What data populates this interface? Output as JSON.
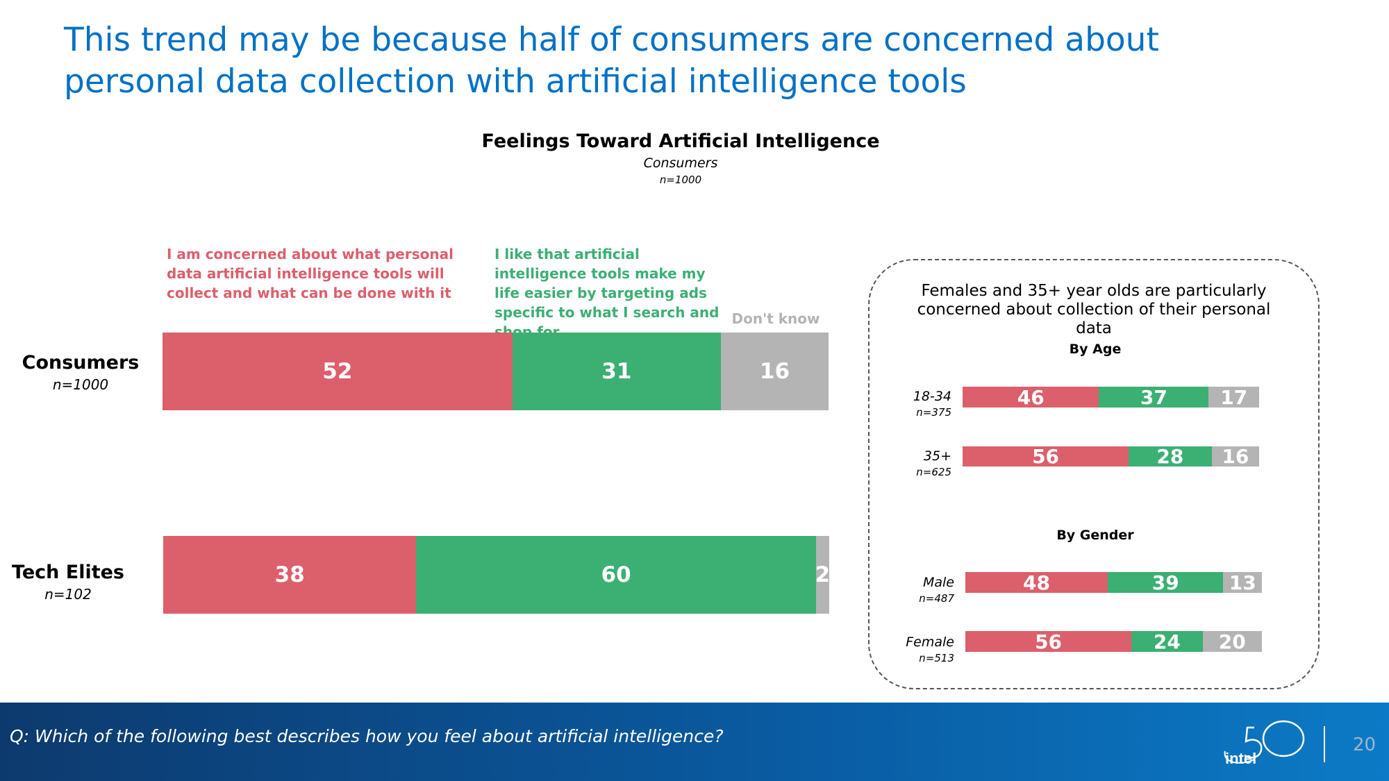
{
  "slide": {
    "title": "This trend may be because half of consumers are concerned about personal data collection with artificial intelligence tools",
    "question": "Q: Which of the following best describes how you feel about artificial intelligence?",
    "page_number": "20",
    "logo_text": "intel",
    "logo_number": "50"
  },
  "colors": {
    "title_blue": "#0071c5",
    "concerned": "#dc5f6c",
    "like": "#3caf73",
    "dont_know": "#b4b4b4"
  },
  "chart_data": [
    {
      "type": "bar",
      "orientation": "horizontal",
      "stacked": true,
      "title": "Feelings Toward Artificial Intelligence",
      "subtitle": "Consumers",
      "n_label": "n=1000",
      "legend": {
        "concerned": "I am concerned about what personal data artificial intelligence tools will collect and what can be done with it",
        "like": "I like that artificial intelligence tools make my life easier by targeting ads specific to what I search and shop for",
        "dont_know": "Don't know"
      },
      "categories": [
        {
          "name": "Consumers",
          "n": "n=1000"
        },
        {
          "name": "Tech Elites",
          "n": "n=102"
        }
      ],
      "series": [
        {
          "name": "I am concerned about what personal data artificial intelligence tools will collect and what can be done with it",
          "values": [
            52,
            38
          ]
        },
        {
          "name": "I like that artificial intelligence tools make my life easier by targeting ads specific to what I search and shop for",
          "values": [
            31,
            60
          ]
        },
        {
          "name": "Don't know",
          "values": [
            16,
            2
          ]
        }
      ],
      "xlim": [
        0,
        100
      ]
    },
    {
      "type": "bar",
      "orientation": "horizontal",
      "stacked": true,
      "heading": "Females and 35+ year olds are particularly concerned about collection of their personal data",
      "groups": [
        {
          "title": "By Age",
          "rows": [
            {
              "label": "18-34",
              "n": "n=375",
              "values": [
                46,
                37,
                17
              ]
            },
            {
              "label": "35+",
              "n": "n=625",
              "values": [
                56,
                28,
                16
              ]
            }
          ]
        },
        {
          "title": "By Gender",
          "rows": [
            {
              "label": "Male",
              "n": "n=487",
              "values": [
                48,
                39,
                13
              ]
            },
            {
              "label": "Female",
              "n": "n=513",
              "values": [
                56,
                24,
                20
              ]
            }
          ]
        }
      ],
      "series_names": [
        "I am concerned about what personal data artificial intelligence tools will collect and what can be done with it",
        "I like that artificial intelligence tools make my life easier by targeting ads specific to what I search and shop for",
        "Don't know"
      ],
      "xlim": [
        0,
        100
      ]
    }
  ]
}
